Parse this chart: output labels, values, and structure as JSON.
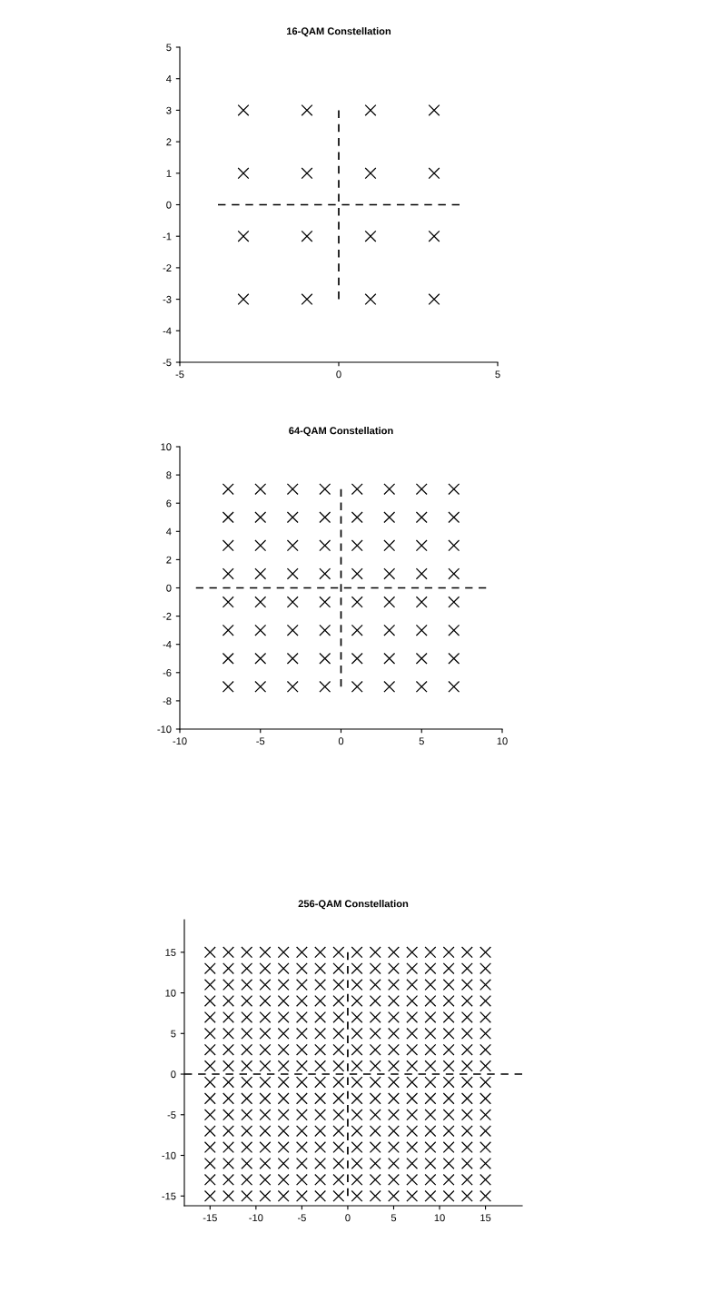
{
  "chart_data": [
    {
      "type": "scatter",
      "title": "16-QAM Constellation",
      "xlim": [
        -5,
        5
      ],
      "ylim": [
        -5,
        5
      ],
      "xticks": [
        -5,
        0,
        5
      ],
      "yticks": [
        -5,
        -4,
        -3,
        -2,
        -1,
        0,
        1,
        2,
        3,
        4,
        5
      ],
      "grid": false,
      "marker": "cross",
      "series": [
        {
          "color": "#000000",
          "x": [
            -3,
            -1,
            1,
            3,
            -3,
            -1,
            1,
            3,
            -3,
            -1,
            1,
            3,
            -3,
            -1,
            1,
            3
          ],
          "values": [
            3,
            3,
            3,
            3,
            1,
            1,
            1,
            1,
            -1,
            -1,
            -1,
            -1,
            -3,
            -3,
            -3,
            -3
          ]
        },
        {
          "type": "line",
          "line_style": "dashed",
          "marker": "none",
          "color": "#000000",
          "x": [
            -3.8,
            3.8
          ],
          "values": [
            0,
            0
          ]
        },
        {
          "type": "line",
          "line_style": "dashed",
          "marker": "none",
          "color": "#000000",
          "x": [
            0,
            0
          ],
          "values": [
            -3,
            3
          ]
        }
      ]
    },
    {
      "type": "scatter",
      "title": "64-QAM Constellation",
      "xlim": [
        -10,
        10
      ],
      "ylim": [
        -10,
        10
      ],
      "xticks": [
        -10,
        -5,
        0,
        5,
        10
      ],
      "yticks": [
        -10,
        -8,
        -6,
        -4,
        -2,
        0,
        2,
        4,
        6,
        8,
        10
      ],
      "grid": false,
      "marker": "cross",
      "series": [
        {
          "color": "#000000",
          "x": [
            -7,
            -5,
            -3,
            -1,
            1,
            3,
            5,
            7,
            -7,
            -5,
            -3,
            -1,
            1,
            3,
            5,
            7,
            -7,
            -5,
            -3,
            -1,
            1,
            3,
            5,
            7,
            -7,
            -5,
            -3,
            -1,
            1,
            3,
            5,
            7,
            -7,
            -5,
            -3,
            -1,
            1,
            3,
            5,
            7,
            -7,
            -5,
            -3,
            -1,
            1,
            3,
            5,
            7,
            -7,
            -5,
            -3,
            -1,
            1,
            3,
            5,
            7,
            -7,
            -5,
            -3,
            -1,
            1,
            3,
            5,
            7
          ],
          "values": [
            7,
            7,
            7,
            7,
            7,
            7,
            7,
            7,
            5,
            5,
            5,
            5,
            5,
            5,
            5,
            5,
            3,
            3,
            3,
            3,
            3,
            3,
            3,
            3,
            1,
            1,
            1,
            1,
            1,
            1,
            1,
            1,
            -1,
            -1,
            -1,
            -1,
            -1,
            -1,
            -1,
            -1,
            -3,
            -3,
            -3,
            -3,
            -3,
            -3,
            -3,
            -3,
            -5,
            -5,
            -5,
            -5,
            -5,
            -5,
            -5,
            -5,
            -7,
            -7,
            -7,
            -7,
            -7,
            -7,
            -7,
            -7
          ]
        },
        {
          "type": "line",
          "line_style": "dashed",
          "marker": "none",
          "color": "#000000",
          "x": [
            -9,
            9
          ],
          "values": [
            0,
            0
          ]
        },
        {
          "type": "line",
          "line_style": "dashed",
          "marker": "none",
          "color": "#000000",
          "x": [
            0,
            0
          ],
          "values": [
            -7,
            7
          ]
        }
      ]
    },
    {
      "type": "scatter",
      "title": "256-QAM Constellation",
      "xlim": [
        -17.8,
        19
      ],
      "ylim": [
        -16.2,
        19
      ],
      "xticks": [
        -15,
        -10,
        -5,
        0,
        5,
        10,
        15
      ],
      "yticks": [
        -15,
        -10,
        -5,
        0,
        5,
        10,
        15
      ],
      "grid": false,
      "marker": "cross",
      "series": [
        {
          "color": "#000000",
          "x": [
            -15,
            -13,
            -11,
            -9,
            -7,
            -5,
            -3,
            -1,
            1,
            3,
            5,
            7,
            9,
            11,
            13,
            15,
            -15,
            -13,
            -11,
            -9,
            -7,
            -5,
            -3,
            -1,
            1,
            3,
            5,
            7,
            9,
            11,
            13,
            15,
            -15,
            -13,
            -11,
            -9,
            -7,
            -5,
            -3,
            -1,
            1,
            3,
            5,
            7,
            9,
            11,
            13,
            15,
            -15,
            -13,
            -11,
            -9,
            -7,
            -5,
            -3,
            -1,
            1,
            3,
            5,
            7,
            9,
            11,
            13,
            15,
            -15,
            -13,
            -11,
            -9,
            -7,
            -5,
            -3,
            -1,
            1,
            3,
            5,
            7,
            9,
            11,
            13,
            15,
            -15,
            -13,
            -11,
            -9,
            -7,
            -5,
            -3,
            -1,
            1,
            3,
            5,
            7,
            9,
            11,
            13,
            15,
            -15,
            -13,
            -11,
            -9,
            -7,
            -5,
            -3,
            -1,
            1,
            3,
            5,
            7,
            9,
            11,
            13,
            15,
            -15,
            -13,
            -11,
            -9,
            -7,
            -5,
            -3,
            -1,
            1,
            3,
            5,
            7,
            9,
            11,
            13,
            15,
            -15,
            -13,
            -11,
            -9,
            -7,
            -5,
            -3,
            -1,
            1,
            3,
            5,
            7,
            9,
            11,
            13,
            15,
            -15,
            -13,
            -11,
            -9,
            -7,
            -5,
            -3,
            -1,
            1,
            3,
            5,
            7,
            9,
            11,
            13,
            15,
            -15,
            -13,
            -11,
            -9,
            -7,
            -5,
            -3,
            -1,
            1,
            3,
            5,
            7,
            9,
            11,
            13,
            15,
            -15,
            -13,
            -11,
            -9,
            -7,
            -5,
            -3,
            -1,
            1,
            3,
            5,
            7,
            9,
            11,
            13,
            15,
            -15,
            -13,
            -11,
            -9,
            -7,
            -5,
            -3,
            -1,
            1,
            3,
            5,
            7,
            9,
            11,
            13,
            15,
            -15,
            -13,
            -11,
            -9,
            -7,
            -5,
            -3,
            -1,
            1,
            3,
            5,
            7,
            9,
            11,
            13,
            15,
            -15,
            -13,
            -11,
            -9,
            -7,
            -5,
            -3,
            -1,
            1,
            3,
            5,
            7,
            9,
            11,
            13,
            15,
            -15,
            -13,
            -11,
            -9,
            -7,
            -5,
            -3,
            -1,
            1,
            3,
            5,
            7,
            9,
            11,
            13,
            15
          ],
          "values": [
            15,
            15,
            15,
            15,
            15,
            15,
            15,
            15,
            15,
            15,
            15,
            15,
            15,
            15,
            15,
            15,
            13,
            13,
            13,
            13,
            13,
            13,
            13,
            13,
            13,
            13,
            13,
            13,
            13,
            13,
            13,
            13,
            11,
            11,
            11,
            11,
            11,
            11,
            11,
            11,
            11,
            11,
            11,
            11,
            11,
            11,
            11,
            11,
            9,
            9,
            9,
            9,
            9,
            9,
            9,
            9,
            9,
            9,
            9,
            9,
            9,
            9,
            9,
            9,
            7,
            7,
            7,
            7,
            7,
            7,
            7,
            7,
            7,
            7,
            7,
            7,
            7,
            7,
            7,
            7,
            5,
            5,
            5,
            5,
            5,
            5,
            5,
            5,
            5,
            5,
            5,
            5,
            5,
            5,
            5,
            5,
            3,
            3,
            3,
            3,
            3,
            3,
            3,
            3,
            3,
            3,
            3,
            3,
            3,
            3,
            3,
            3,
            1,
            1,
            1,
            1,
            1,
            1,
            1,
            1,
            1,
            1,
            1,
            1,
            1,
            1,
            1,
            1,
            -1,
            -1,
            -1,
            -1,
            -1,
            -1,
            -1,
            -1,
            -1,
            -1,
            -1,
            -1,
            -1,
            -1,
            -1,
            -1,
            -3,
            -3,
            -3,
            -3,
            -3,
            -3,
            -3,
            -3,
            -3,
            -3,
            -3,
            -3,
            -3,
            -3,
            -3,
            -3,
            -5,
            -5,
            -5,
            -5,
            -5,
            -5,
            -5,
            -5,
            -5,
            -5,
            -5,
            -5,
            -5,
            -5,
            -5,
            -5,
            -7,
            -7,
            -7,
            -7,
            -7,
            -7,
            -7,
            -7,
            -7,
            -7,
            -7,
            -7,
            -7,
            -7,
            -7,
            -7,
            -9,
            -9,
            -9,
            -9,
            -9,
            -9,
            -9,
            -9,
            -9,
            -9,
            -9,
            -9,
            -9,
            -9,
            -9,
            -9,
            -11,
            -11,
            -11,
            -11,
            -11,
            -11,
            -11,
            -11,
            -11,
            -11,
            -11,
            -11,
            -11,
            -11,
            -11,
            -11,
            -13,
            -13,
            -13,
            -13,
            -13,
            -13,
            -13,
            -13,
            -13,
            -13,
            -13,
            -13,
            -13,
            -13,
            -13,
            -13,
            -15,
            -15,
            -15,
            -15,
            -15,
            -15,
            -15,
            -15,
            -15,
            -15,
            -15,
            -15,
            -15,
            -15,
            -15,
            -15
          ]
        },
        {
          "type": "line",
          "line_style": "dashed",
          "marker": "none",
          "color": "#000000",
          "x": [
            -17.8,
            19
          ],
          "values": [
            0,
            0
          ]
        },
        {
          "type": "line",
          "line_style": "dashed",
          "marker": "none",
          "color": "#000000",
          "x": [
            0,
            0
          ],
          "values": [
            -15,
            15
          ]
        }
      ]
    }
  ]
}
